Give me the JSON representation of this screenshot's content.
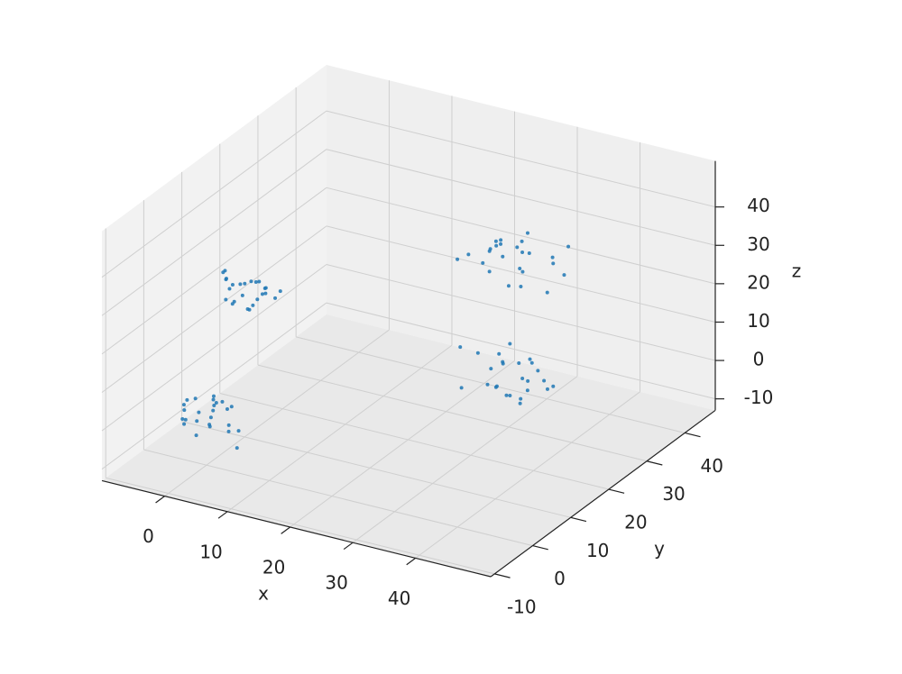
{
  "chart_data": {
    "type": "scatter3d",
    "xlabel": "x",
    "ylabel": "y",
    "zlabel": "z",
    "color": "#1f77b4",
    "grid": true,
    "xlim": [
      -10,
      52
    ],
    "ylim": [
      -11,
      48
    ],
    "zlim": [
      -13,
      52
    ],
    "xticks": [
      0,
      10,
      20,
      30,
      40
    ],
    "yticks": [
      -10,
      0,
      10,
      20,
      30,
      40
    ],
    "zticks": [
      -10,
      0,
      10,
      20,
      30,
      40
    ],
    "x": [
      1.2,
      -2.5,
      3.1,
      0.4,
      -4.2,
      2.2,
      -1.1,
      5.0,
      -0.6,
      1.8,
      -3.3,
      0.9,
      -2.0,
      4.1,
      -5.1,
      0.0,
      2.7,
      -1.7,
      3.6,
      -0.3,
      1.4,
      -2.8,
      6.2,
      -3.9,
      0.7,
      28.1,
      33.5,
      30.9,
      25.2,
      35.8,
      29.4,
      31.7,
      26.6,
      34.2,
      30.1,
      22.8,
      32.9,
      27.5,
      36.4,
      29.0,
      31.3,
      24.7,
      33.0,
      28.8,
      30.6,
      37.5,
      26.0,
      31.9,
      29.7,
      27.2,
      -0.7,
      2.3,
      -2.9,
      1.5,
      3.8,
      -1.4,
      0.2,
      -3.6,
      2.9,
      -0.1,
      1.1,
      -4.3,
      4.5,
      -2.2,
      0.8,
      -1.0,
      2.0,
      -3.0,
      3.3,
      -0.5,
      1.7,
      -2.5,
      0.4,
      5.1,
      -1.8,
      27.0,
      34.1,
      31.2,
      24.5,
      36.8,
      29.9,
      32.6,
      22.9,
      35.0,
      28.3,
      31.8,
      26.1,
      38.4,
      30.4,
      25.7,
      33.3,
      29.0,
      21.8,
      34.7,
      30.9,
      27.6,
      32.0,
      36.1,
      28.8,
      31.5
    ],
    "y": [
      -0.8,
      2.1,
      1.5,
      -3.2,
      0.6,
      -1.9,
      3.8,
      0.2,
      -4.5,
      2.9,
      -0.4,
      1.1,
      -2.6,
      -1.3,
      3.3,
      0.9,
      -3.7,
      4.6,
      -0.1,
      2.4,
      -5.0,
      1.7,
      -2.2,
      0.5,
      3.0,
      31.5,
      27.2,
      34.6,
      29.8,
      32.1,
      25.4,
      30.3,
      35.9,
      28.0,
      33.4,
      29.1,
      24.6,
      31.0,
      28.7,
      37.2,
      30.5,
      26.3,
      32.7,
      29.4,
      34.0,
      27.8,
      31.9,
      23.5,
      30.8,
      33.1,
      11.2,
      8.4,
      10.0,
      12.9,
      7.1,
      9.6,
      13.5,
      10.8,
      6.5,
      11.9,
      9.0,
      12.2,
      8.1,
      10.5,
      14.3,
      7.7,
      11.4,
      9.3,
      12.6,
      5.9,
      10.2,
      13.0,
      8.8,
      11.0,
      9.8,
      32.8,
      26.4,
      30.2,
      35.7,
      28.9,
      33.6,
      24.1,
      31.1,
      37.4,
      29.5,
      27.0,
      34.3,
      30.7,
      22.5,
      32.0,
      28.2,
      36.6,
      30.0,
      25.8,
      33.9,
      29.1,
      38.2,
      31.6,
      26.9,
      30.4
    ],
    "z": [
      0.5,
      -1.8,
      2.4,
      1.0,
      -3.1,
      3.5,
      -0.7,
      -2.2,
      1.9,
      -4.0,
      0.3,
      2.8,
      -1.2,
      4.2,
      -0.5,
      -3.6,
      1.4,
      0.0,
      -2.7,
      3.1,
      -1.0,
      2.0,
      -4.4,
      0.8,
      1.6,
      2.1,
      -3.4,
      0.7,
      4.5,
      -1.6,
      1.2,
      -5.2,
      3.0,
      -0.3,
      -2.8,
      5.6,
      0.4,
      -4.1,
      2.6,
      -1.0,
      3.8,
      -2.2,
      0.9,
      6.0,
      -3.7,
      1.5,
      -0.8,
      2.9,
      -5.5,
      0.1,
      25.8,
      23.4,
      27.1,
      24.2,
      26.5,
      22.0,
      25.0,
      28.3,
      23.9,
      26.1,
      21.5,
      24.7,
      27.6,
      25.4,
      23.0,
      26.9,
      24.0,
      29.2,
      22.6,
      25.6,
      27.9,
      23.6,
      24.9,
      26.3,
      21.1,
      31.4,
      27.9,
      34.2,
      29.0,
      25.6,
      32.7,
      36.8,
      28.3,
      30.6,
      33.9,
      26.7,
      31.0,
      29.5,
      35.4,
      24.3,
      30.1,
      32.3,
      27.4,
      37.5,
      29.8,
      33.1,
      26.0,
      30.9,
      34.6,
      28.6
    ]
  }
}
